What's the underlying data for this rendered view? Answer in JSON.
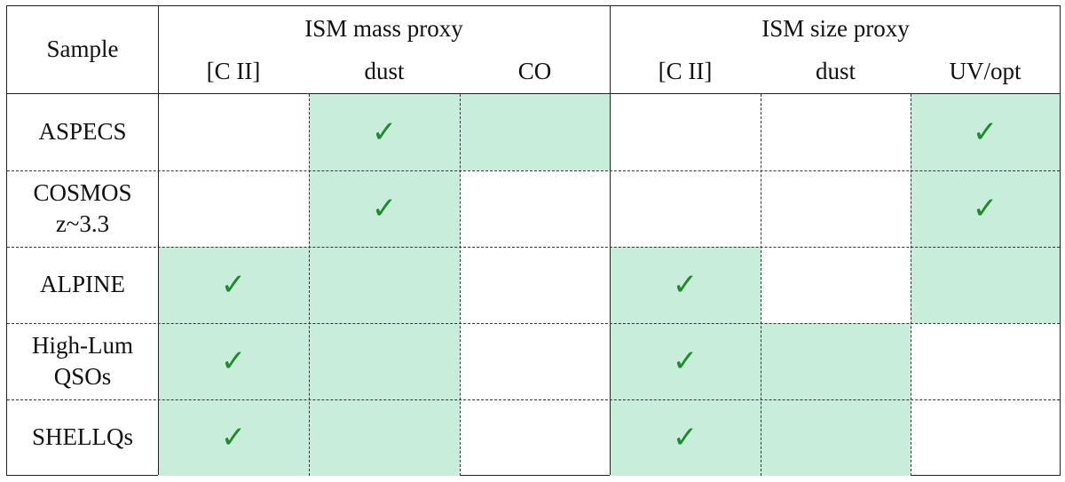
{
  "header": {
    "sample_label": "Sample",
    "group_mass": "ISM mass proxy",
    "group_size": "ISM size proxy",
    "columns": [
      "[C II]",
      "dust",
      "CO",
      "[C II]",
      "dust",
      "UV/opt"
    ]
  },
  "rows": [
    {
      "label_line1": "ASPECS",
      "label_line2": "",
      "shaded": [
        false,
        true,
        true,
        false,
        false,
        true
      ],
      "checks": [
        false,
        true,
        false,
        false,
        false,
        true
      ]
    },
    {
      "label_line1": "COSMOS",
      "label_line2": "z~3.3",
      "shaded": [
        false,
        true,
        false,
        false,
        false,
        true
      ],
      "checks": [
        false,
        true,
        false,
        false,
        false,
        true
      ]
    },
    {
      "label_line1": "ALPINE",
      "label_line2": "",
      "shaded": [
        true,
        true,
        false,
        true,
        false,
        true
      ],
      "checks": [
        true,
        false,
        false,
        true,
        false,
        false
      ]
    },
    {
      "label_line1": "High-Lum",
      "label_line2": "QSOs",
      "shaded": [
        true,
        true,
        false,
        true,
        true,
        false
      ],
      "checks": [
        true,
        false,
        false,
        true,
        false,
        false
      ]
    },
    {
      "label_line1": "SHELLQs",
      "label_line2": "",
      "shaded": [
        true,
        true,
        false,
        true,
        true,
        false
      ],
      "checks": [
        true,
        false,
        false,
        true,
        false,
        false
      ]
    }
  ],
  "check_symbol": "✓",
  "colors": {
    "shade": "#c8eedb",
    "check": "#1f8a2e",
    "border": "#222222"
  }
}
